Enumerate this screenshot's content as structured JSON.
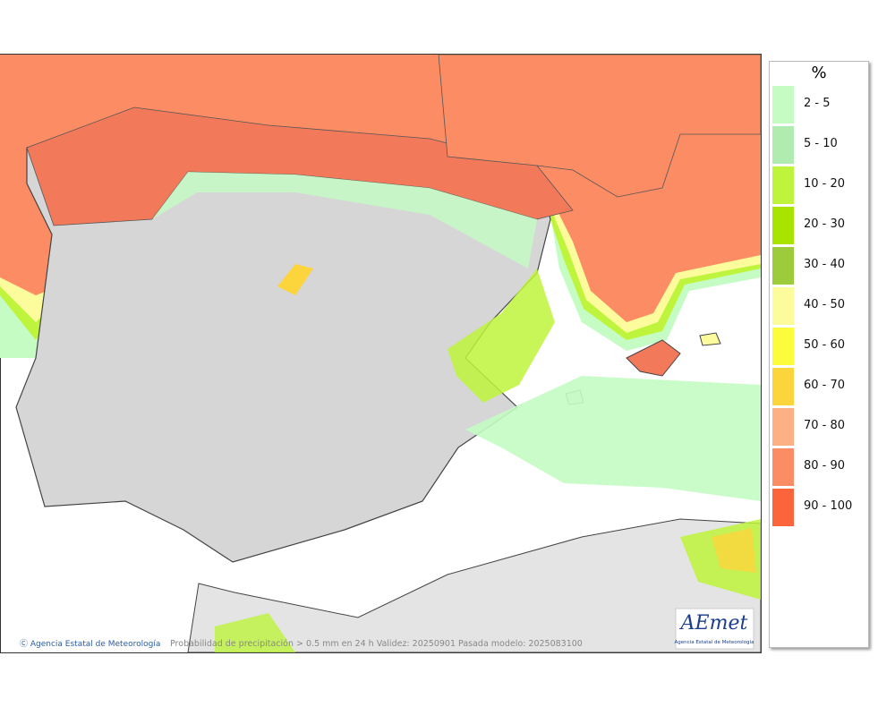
{
  "legend": {
    "title": "%",
    "items": [
      {
        "label": "2 - 5",
        "color": "#c4fcc4"
      },
      {
        "label": "5 - 10",
        "color": "#b0ecb0"
      },
      {
        "label": "10 - 20",
        "color": "#bef43c"
      },
      {
        "label": "20 - 30",
        "color": "#a8e400"
      },
      {
        "label": "30 - 40",
        "color": "#9ccc3c"
      },
      {
        "label": "40 - 50",
        "color": "#fcfc9c"
      },
      {
        "label": "50 - 60",
        "color": "#fcfc3c"
      },
      {
        "label": "60 - 70",
        "color": "#fcd43c"
      },
      {
        "label": "70 - 80",
        "color": "#fcb084"
      },
      {
        "label": "80 - 90",
        "color": "#fc8c64"
      },
      {
        "label": "90 - 100",
        "color": "#fc643c"
      }
    ]
  },
  "footer": {
    "credit": "Ⓒ Agencia Estatal de Meteorología",
    "caption": "Probabilidad de precipitación > 0.5 mm en 24 h Validez: 20250901 Pasada modelo: 2025083100"
  },
  "logo": {
    "name": "AEmet",
    "subtitle": "Agencia Estatal de Meteorología"
  }
}
